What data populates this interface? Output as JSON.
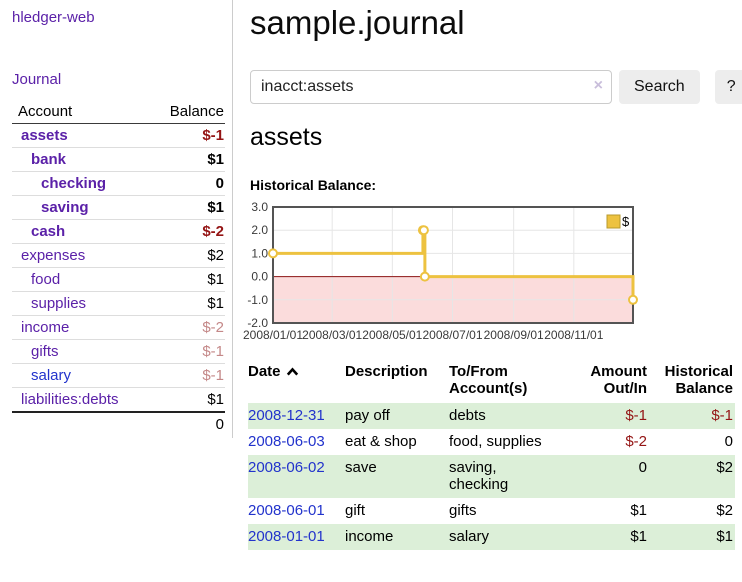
{
  "app": {
    "title": "hledger-web"
  },
  "nav": {
    "journal": "Journal"
  },
  "sidebar": {
    "headers": {
      "account": "Account",
      "balance": "Balance"
    },
    "accounts": [
      {
        "name": "assets",
        "balance": "$-1",
        "level": 1,
        "bold": true
      },
      {
        "name": "bank",
        "balance": "$1",
        "level": 2,
        "bold": true
      },
      {
        "name": "checking",
        "balance": "0",
        "level": 3,
        "bold": true
      },
      {
        "name": "saving",
        "balance": "$1",
        "level": 3,
        "bold": true
      },
      {
        "name": "cash",
        "balance": "$-2",
        "level": 2,
        "bold": true
      },
      {
        "name": "expenses",
        "balance": "$2",
        "level": 1,
        "bold": false
      },
      {
        "name": "food",
        "balance": "$1",
        "level": 2,
        "bold": false
      },
      {
        "name": "supplies",
        "balance": "$1",
        "level": 2,
        "bold": false
      },
      {
        "name": "income",
        "balance": "$-2",
        "level": 1,
        "bold": false
      },
      {
        "name": "gifts",
        "balance": "$-1",
        "level": 2,
        "bold": false
      },
      {
        "name": "salary",
        "balance": "$-1",
        "level": 2,
        "bold": false
      },
      {
        "name": "liabilities:debts",
        "balance": "$1",
        "level": 1,
        "bold": false
      }
    ],
    "total": "0"
  },
  "header": {
    "title": "sample.journal"
  },
  "search": {
    "value": "inacct:assets",
    "clear": "×",
    "button": "Search",
    "help": "?"
  },
  "account_page": {
    "title": "assets",
    "chart_label": "Historical Balance:"
  },
  "chart_data": {
    "type": "line",
    "step": true,
    "series": [
      {
        "name": "$",
        "color": "#edc240",
        "x": [
          "2008-01-01",
          "2008-06-01",
          "2008-06-02",
          "2008-06-03",
          "2008-12-31"
        ],
        "values": [
          1,
          2,
          2,
          0,
          -1
        ]
      }
    ],
    "title": "Historical Balance:",
    "xlabel": "",
    "ylabel": "",
    "ylim": [
      -2,
      3
    ],
    "yticks": [
      3.0,
      2.0,
      1.0,
      0.0,
      -1.0,
      -2.0
    ],
    "xticks": [
      "2008/01/01",
      "2008/03/01",
      "2008/05/01",
      "2008/07/01",
      "2008/09/01",
      "2008/11/01"
    ],
    "grid": true,
    "legend_position": "top-right",
    "negative_region_color": "#fbdcdc",
    "zero_line_color": "#8f1414",
    "frame_color": "#545454",
    "grid_color": "#e6e6e6"
  },
  "register": {
    "headers": {
      "date": "Date",
      "description": "Description",
      "accounts": "To/From Account(s)",
      "amount": "Amount Out/In",
      "balance": "Historical Balance"
    },
    "rows": [
      {
        "date": "2008-12-31",
        "description": "pay off",
        "accounts": "debts",
        "amount": "$-1",
        "balance": "$-1"
      },
      {
        "date": "2008-06-03",
        "description": "eat & shop",
        "accounts": "food, supplies",
        "amount": "$-2",
        "balance": "0"
      },
      {
        "date": "2008-06-02",
        "description": "save",
        "accounts": "saving, checking",
        "amount": "0",
        "balance": "$2"
      },
      {
        "date": "2008-06-01",
        "description": "gift",
        "accounts": "gifts",
        "amount": "$1",
        "balance": "$2"
      },
      {
        "date": "2008-01-01",
        "description": "income",
        "accounts": "salary",
        "amount": "$1",
        "balance": "$1"
      }
    ]
  }
}
